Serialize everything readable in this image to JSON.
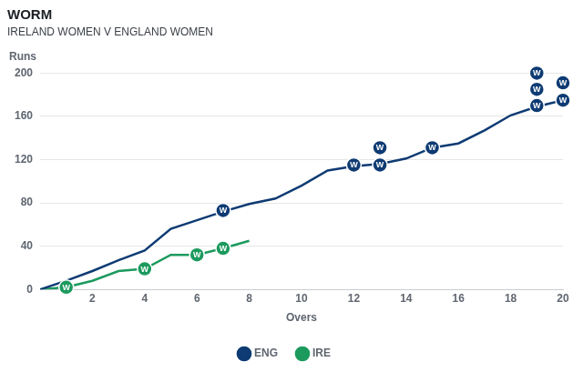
{
  "chart_data": {
    "type": "line",
    "title": "WORM",
    "subtitle": "IRELAND WOMEN V ENGLAND WOMEN",
    "x_label": "Overs",
    "y_label": "Runs",
    "wicket_label": "W",
    "xlim": [
      0,
      20
    ],
    "xticks": [
      2,
      4,
      6,
      8,
      10,
      12,
      14,
      16,
      18,
      20
    ],
    "ylim": [
      0,
      200
    ],
    "yticks": [
      0,
      40,
      80,
      120,
      160,
      200
    ],
    "grid": "y",
    "legend": "bottom",
    "series": [
      {
        "name": "ENG",
        "color": "#0e3b73",
        "x": [
          0,
          1,
          2,
          3,
          4,
          5,
          6,
          7,
          8,
          9,
          10,
          11,
          12,
          13,
          14,
          15,
          16,
          17,
          18,
          19,
          20
        ],
        "values": [
          0,
          8,
          17,
          27,
          36,
          56,
          64,
          72,
          79,
          84,
          96,
          110,
          114,
          116,
          121,
          131,
          135,
          147,
          161,
          169,
          175
        ],
        "wickets": {
          "x": [
            7,
            12,
            13,
            13,
            15,
            19,
            19,
            19,
            20,
            20
          ],
          "y": [
            73,
            115,
            115,
            131,
            131,
            170,
            185,
            200,
            175,
            191
          ]
        }
      },
      {
        "name": "IRE",
        "color": "#1c9a5e",
        "x": [
          0,
          1,
          2,
          3,
          4,
          5,
          6,
          7,
          8
        ],
        "values": [
          0,
          2,
          8,
          17,
          19,
          32,
          32,
          38,
          45
        ],
        "wickets": {
          "x": [
            1,
            4,
            6,
            7
          ],
          "y": [
            2,
            19,
            32,
            38
          ]
        }
      }
    ]
  }
}
